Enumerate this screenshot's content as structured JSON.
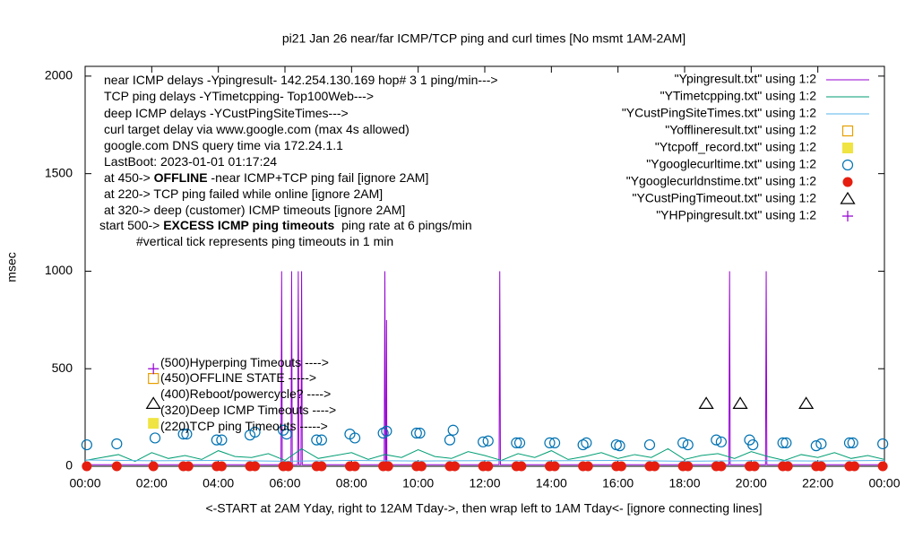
{
  "chart_data": {
    "type": "line",
    "title": "pi21 Jan 26  near/far ICMP/TCP ping and curl times [No msmt 1AM-2AM]",
    "y_label": "msec",
    "x_label": "<-START at 2AM Yday, right to 12AM Tday->, then wrap left to 1AM Tday<- [ignore connecting lines]",
    "xlim": [
      0,
      24
    ],
    "ylim": [
      0,
      2050
    ],
    "xticks": [
      {
        "value": 0,
        "label": "00:00"
      },
      {
        "value": 2,
        "label": "02:00"
      },
      {
        "value": 4,
        "label": "04:00"
      },
      {
        "value": 6,
        "label": "06:00"
      },
      {
        "value": 8,
        "label": "08:00"
      },
      {
        "value": 10,
        "label": "10:00"
      },
      {
        "value": 12,
        "label": "12:00"
      },
      {
        "value": 14,
        "label": "14:00"
      },
      {
        "value": 16,
        "label": "16:00"
      },
      {
        "value": 18,
        "label": "18:00"
      },
      {
        "value": 20,
        "label": "20:00"
      },
      {
        "value": 22,
        "label": "22:00"
      },
      {
        "value": 24,
        "label": "00:00"
      }
    ],
    "yticks": [
      0,
      500,
      1000,
      1500,
      2000
    ],
    "grid": false,
    "legend_position": "top-right",
    "annotations": [
      [
        {
          "text": "near ICMP delays -Ypingresult- 142.254.130.169 hop# 3 1 ping/min--->"
        }
      ],
      [
        {
          "text": "TCP ping delays -YTimetcpping- Top100Web--->"
        }
      ],
      [
        {
          "text": "deep ICMP delays -YCustPingSiteTimes--->"
        }
      ],
      [
        {
          "text": "curl target delay via www.google.com (max 4s allowed)"
        }
      ],
      [
        {
          "text": "google.com DNS query time via 172.24.1.1"
        }
      ],
      [
        {
          "text": "LastBoot: 2023-01-01 01:17:24"
        }
      ],
      [
        {
          "text": "at 450-> "
        },
        {
          "text": "OFFLINE",
          "bold": true
        },
        {
          "text": " -near ICMP+TCP ping fail [ignore 2AM]"
        }
      ],
      [
        {
          "text": "at 220-> TCP ping failed while online [ignore 2AM]"
        }
      ],
      [
        {
          "text": "at 320-> deep (customer) ICMP timeouts [ignore 2AM]"
        }
      ],
      [
        {
          "text": "start 500-> "
        },
        {
          "text": "EXCESS ICMP ping timeouts",
          "bold": true
        },
        {
          "text": "  ping rate at 6 pings/min"
        }
      ],
      [
        {
          "text": "#vertical tick represents ping timeouts in 1 min"
        }
      ],
      [
        {
          "text": "(500)Hyperping Timeouts ---->"
        }
      ],
      [
        {
          "text": "(450)OFFLINE STATE ----->"
        }
      ],
      [
        {
          "text": "(400)Reboot/powercycle? ---->"
        }
      ],
      [
        {
          "text": "(320)Deep ICMP Timeouts ---->"
        }
      ],
      [
        {
          "text": "(220)TCP ping Timeouts ----->"
        }
      ]
    ],
    "series": [
      {
        "name": "\"Ypingresult.txt\" using 1:2",
        "color": "#9400d3",
        "style": "line",
        "x": [
          0,
          5.88,
          5.9,
          5.92,
          6.18,
          6.2,
          6.22,
          6.38,
          6.4,
          6.42,
          6.48,
          6.5,
          6.52,
          8.98,
          9.0,
          9.02,
          9.04,
          9.05,
          9.06,
          12.43,
          12.45,
          12.47,
          19.33,
          19.35,
          19.37,
          20.43,
          20.45,
          20.47,
          24
        ],
        "values": [
          8,
          8,
          1000,
          8,
          8,
          1000,
          8,
          8,
          1000,
          8,
          8,
          1000,
          8,
          8,
          1000,
          8,
          8,
          750,
          8,
          8,
          1000,
          8,
          8,
          1000,
          8,
          8,
          1000,
          8,
          8
        ]
      },
      {
        "name": "\"YTimetcpping.txt\" using 1:2",
        "color": "#009e73",
        "style": "line",
        "x": [
          0,
          0.5,
          1,
          1.5,
          2,
          2.5,
          3,
          3.5,
          4,
          4.5,
          5,
          5.5,
          6,
          6.5,
          7,
          7.5,
          8,
          8.5,
          9,
          9.5,
          10,
          10.5,
          11,
          11.5,
          12,
          12.5,
          13,
          13.5,
          14,
          14.5,
          15,
          15.5,
          16,
          16.5,
          17,
          17.5,
          18,
          18.5,
          19,
          19.5,
          20,
          20.5,
          21,
          21.5,
          22,
          22.5,
          23,
          23.5,
          24
        ],
        "values": [
          30,
          45,
          60,
          25,
          70,
          40,
          55,
          35,
          80,
          50,
          45,
          65,
          30,
          90,
          40,
          55,
          70,
          35,
          60,
          45,
          85,
          50,
          40,
          75,
          55,
          30,
          65,
          45,
          80,
          35,
          50,
          70,
          40,
          60,
          45,
          90,
          35,
          55,
          65,
          40,
          75,
          50,
          30,
          60,
          45,
          70,
          40,
          55,
          35
        ]
      },
      {
        "name": "\"YCustPingSiteTimes.txt\" using 1:2",
        "color": "#56b4e9",
        "style": "line",
        "x": [
          0,
          2,
          4,
          6,
          8,
          10,
          12,
          14,
          16,
          18,
          20,
          22,
          24
        ],
        "values": [
          32,
          28,
          30,
          26,
          30,
          27,
          29,
          28,
          30,
          26,
          29,
          27,
          30
        ]
      },
      {
        "name": "\"Yofflineresult.txt\" using 1:2",
        "color": "#e69f00",
        "style": "points",
        "marker": "open-square",
        "x": [
          2.05
        ],
        "values": [
          450
        ]
      },
      {
        "name": "\"Ytcpoff_record.txt\" using 1:2",
        "color": "#f0e442",
        "style": "points",
        "marker": "filled-square",
        "x": [
          2.05
        ],
        "values": [
          220
        ]
      },
      {
        "name": "\"Ygooglecurltime.txt\" using 1:2",
        "color": "#0072b2",
        "style": "points",
        "marker": "open-circle",
        "x": [
          0.05,
          0.95,
          2.1,
          2.95,
          3.05,
          3.95,
          4.1,
          4.95,
          5.1,
          5.95,
          6.05,
          6.95,
          7.1,
          7.95,
          8.1,
          8.95,
          9.05,
          9.95,
          10.05,
          10.95,
          11.05,
          11.95,
          12.1,
          12.95,
          13.05,
          13.95,
          14.1,
          14.95,
          15.05,
          15.95,
          16.05,
          16.95,
          17.95,
          18.1,
          18.95,
          19.1,
          19.95,
          20.05,
          20.95,
          21.05,
          21.95,
          22.1,
          22.95,
          23.05,
          23.95
        ],
        "values": [
          110,
          115,
          145,
          165,
          165,
          135,
          135,
          160,
          175,
          185,
          165,
          135,
          135,
          165,
          145,
          170,
          180,
          170,
          170,
          135,
          185,
          125,
          130,
          120,
          120,
          120,
          120,
          110,
          120,
          110,
          105,
          110,
          120,
          110,
          135,
          125,
          135,
          110,
          120,
          120,
          105,
          115,
          120,
          120,
          115
        ]
      },
      {
        "name": "\"Ygooglecurldnstime.txt\" using 1:2",
        "color": "#e51e10",
        "style": "points",
        "marker": "filled-circle",
        "x": [
          0.05,
          0.95,
          2.05,
          2.95,
          3.1,
          3.95,
          4.1,
          4.95,
          5.1,
          5.95,
          6.1,
          6.95,
          7.1,
          7.95,
          8.1,
          8.95,
          9.1,
          9.95,
          10.1,
          10.95,
          11.1,
          11.95,
          12.1,
          12.95,
          13.1,
          13.95,
          14.1,
          14.95,
          15.1,
          15.95,
          16.1,
          16.95,
          17.1,
          17.95,
          18.1,
          18.95,
          19.1,
          19.95,
          20.1,
          20.95,
          21.1,
          21.95,
          22.1,
          22.95,
          23.1,
          23.95
        ],
        "values": [
          0,
          0,
          0,
          0,
          0,
          0,
          0,
          0,
          0,
          0,
          0,
          0,
          0,
          0,
          0,
          0,
          0,
          0,
          0,
          0,
          0,
          0,
          0,
          0,
          0,
          0,
          0,
          0,
          0,
          0,
          0,
          0,
          0,
          0,
          0,
          0,
          0,
          0,
          0,
          0,
          0,
          0,
          0,
          0,
          0,
          0
        ]
      },
      {
        "name": "\"YCustPingTimeout.txt\" using 1:2",
        "color": "#000000",
        "style": "points",
        "marker": "open-triangle",
        "x": [
          2.05,
          18.65,
          19.67,
          21.65
        ],
        "values": [
          320,
          320,
          320,
          320
        ]
      },
      {
        "name": "\"YHPpingresult.txt\" using 1:2",
        "color": "#9400d3",
        "style": "points",
        "marker": "plus",
        "x": [
          2.05
        ],
        "values": [
          500
        ]
      }
    ]
  }
}
